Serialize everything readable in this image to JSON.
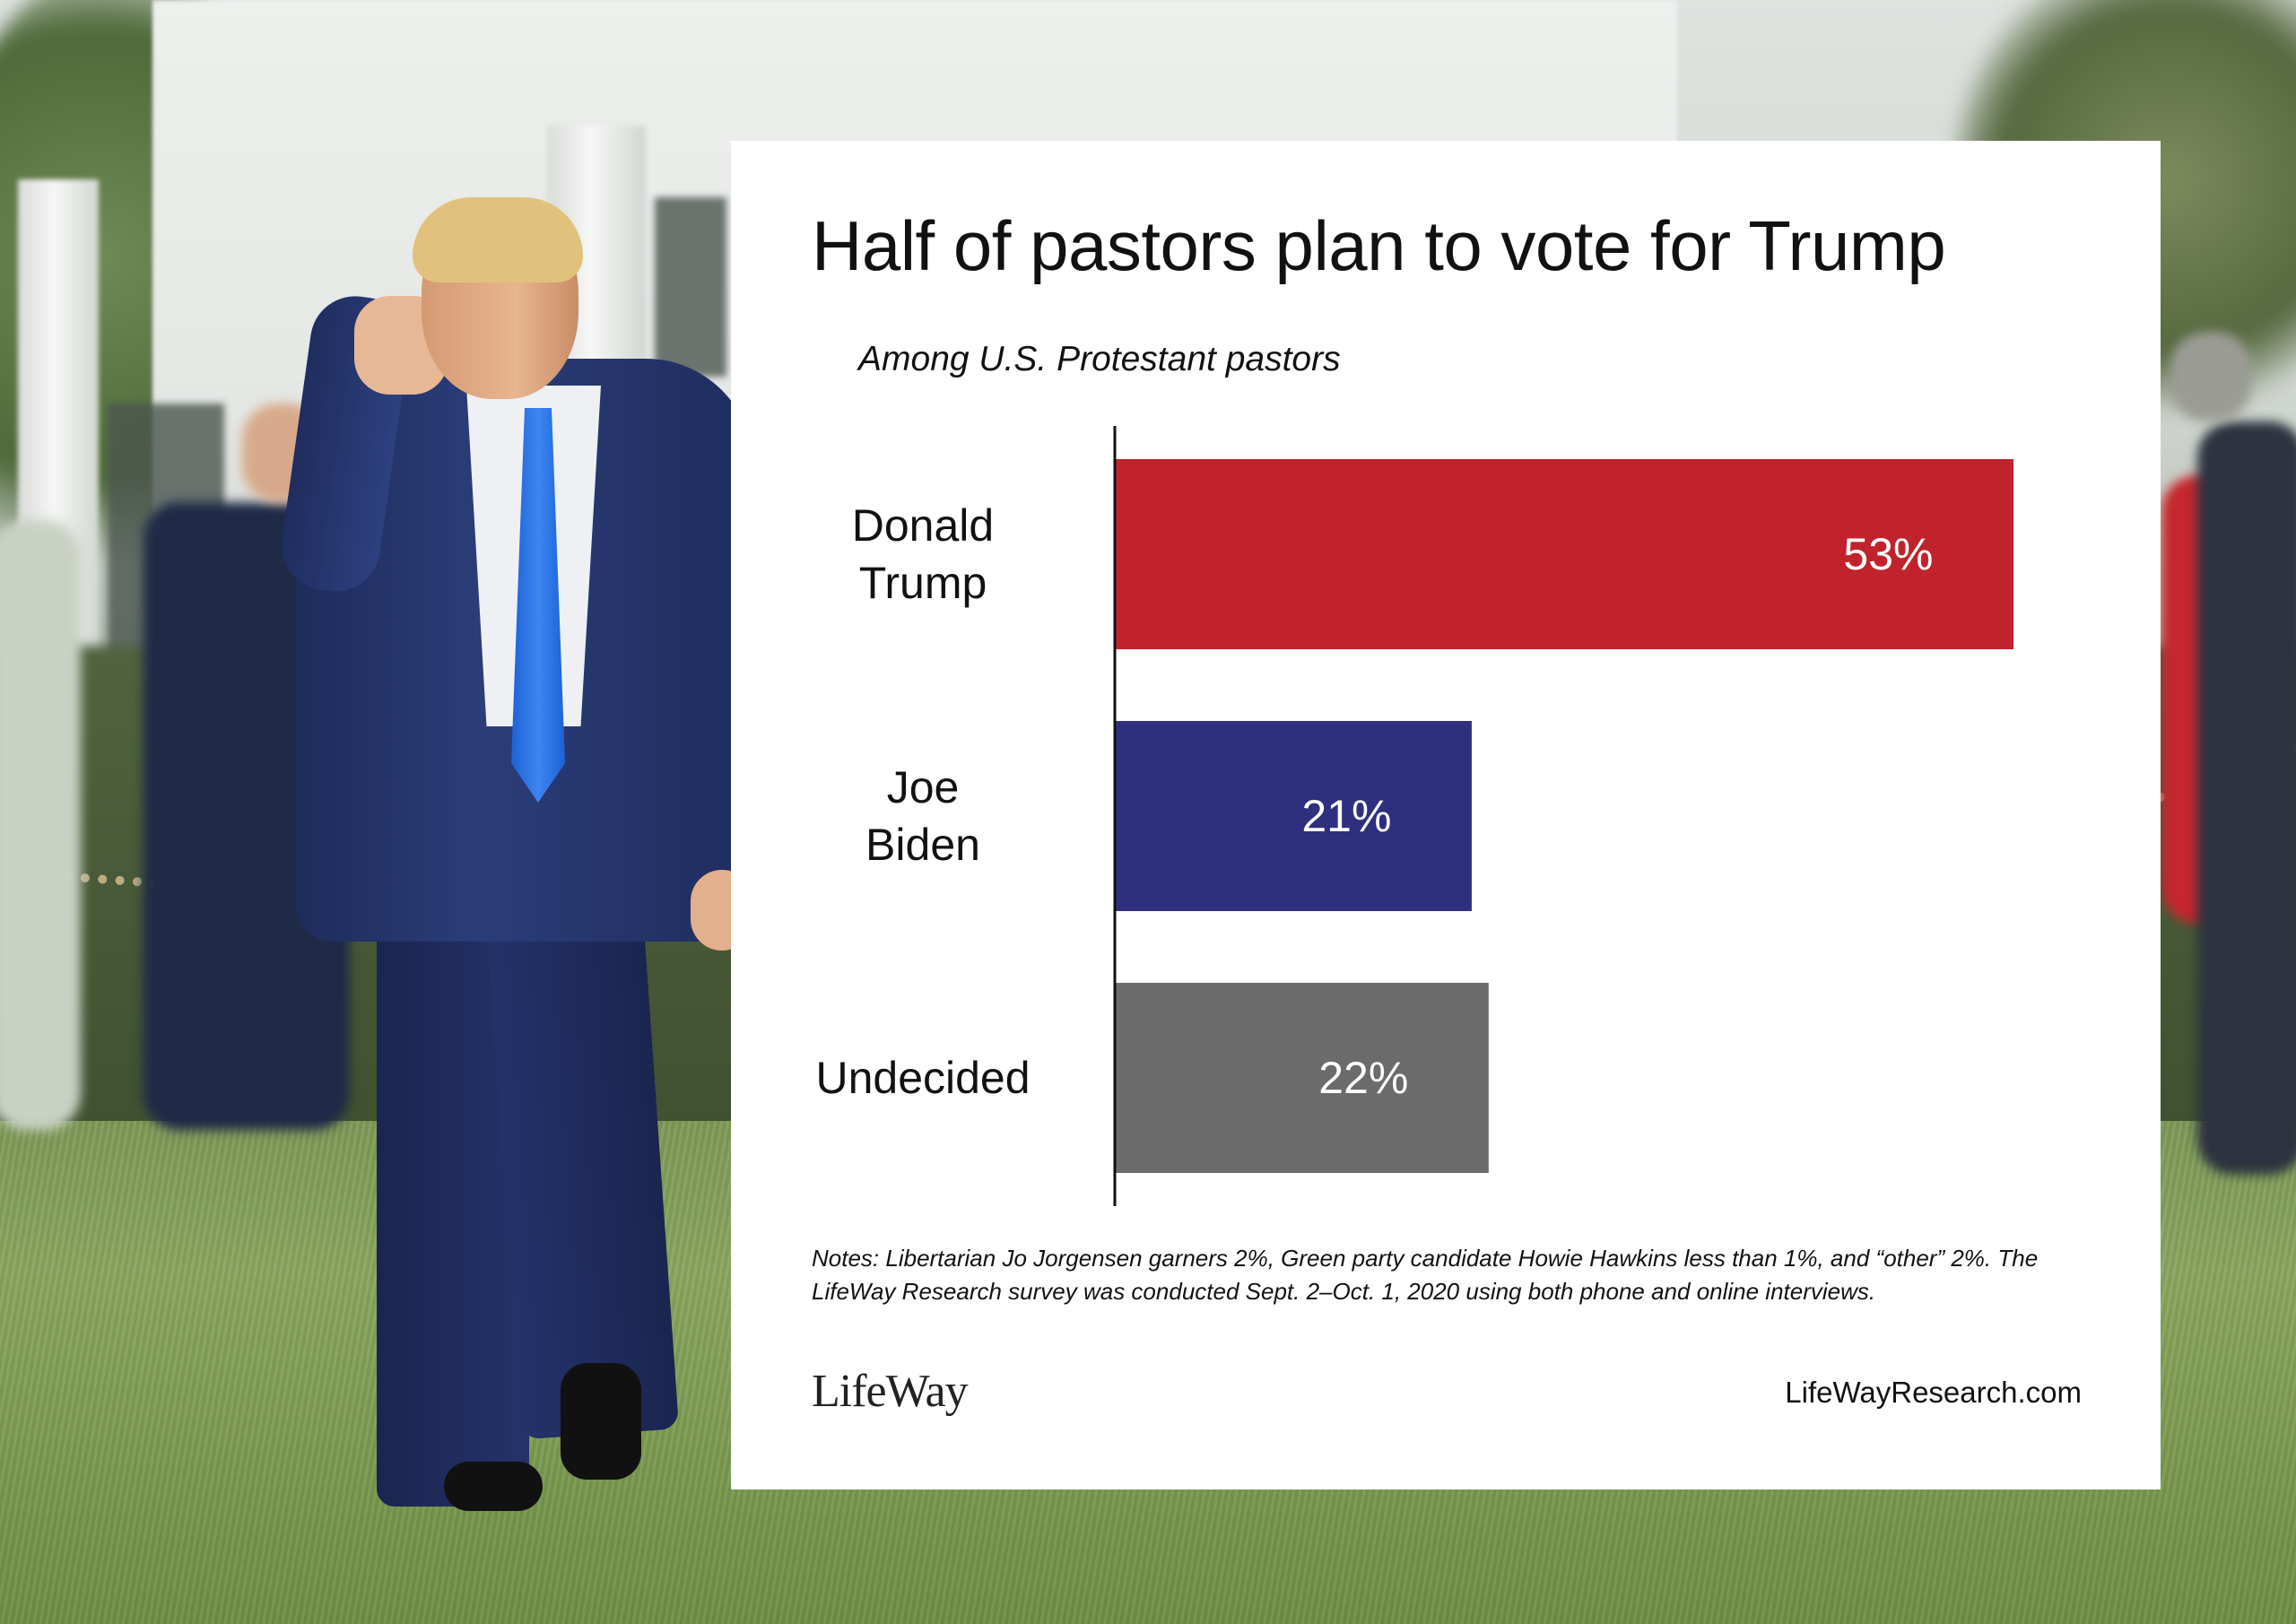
{
  "chart_data": {
    "type": "bar",
    "orientation": "horizontal",
    "title": "Half of pastors plan to vote for Trump",
    "subtitle": "Among U.S. Protestant pastors",
    "categories": [
      "Donald Trump",
      "Joe Biden",
      "Undecided"
    ],
    "category_lines": [
      [
        "Donald",
        "Trump"
      ],
      [
        "Joe",
        "Biden"
      ],
      [
        "Undecided"
      ]
    ],
    "values": [
      53,
      21,
      22
    ],
    "data_labels": [
      "53%",
      "21%",
      "22%"
    ],
    "colors": [
      "#c0232c",
      "#2e2f7f",
      "#6b6b6b"
    ],
    "xlim": [
      0,
      57
    ],
    "grid": false,
    "legend": "none",
    "notes": "Notes: Libertarian Jo Jorgensen garners 2%, Green party candidate Howie Hawkins less than 1%, and “other” 2%. The LifeWay Research survey was conducted Sept. 2–Oct. 1, 2020 using both phone and online interviews."
  },
  "branding": {
    "logo": "LifeWay",
    "url": "LifeWayResearch.com"
  }
}
